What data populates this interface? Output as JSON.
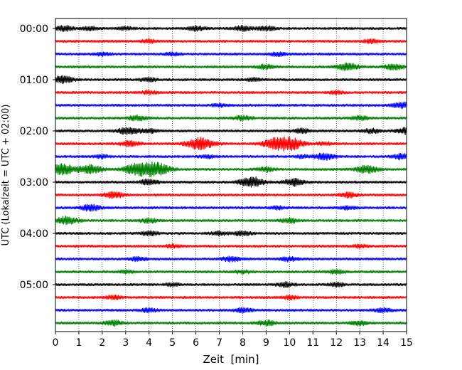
{
  "chart_data": {
    "type": "line",
    "subtype": "seismogram-helicorder",
    "xlabel": "Zeit  [min]",
    "ylabel": "UTC (Lokalzeit = UTC + 02:00)",
    "x_ticks": [
      "0",
      "1",
      "2",
      "3",
      "4",
      "5",
      "6",
      "7",
      "8",
      "9",
      "10",
      "11",
      "12",
      "13",
      "14",
      "15"
    ],
    "xlim": [
      0,
      15
    ],
    "y_ticks": [
      "00:00",
      "01:00",
      "02:00",
      "03:00",
      "04:00",
      "05:00"
    ],
    "traces_per_hour": 4,
    "trace_count": 24,
    "trace_color_cycle": [
      "#000000",
      "#ff0000",
      "#0000ff",
      "#008000"
    ],
    "grid": "vertical dotted at each minute",
    "traces": [
      {
        "start": "00:00",
        "bursts": [
          [
            0.4,
            0.35
          ],
          [
            1.5,
            0.25
          ],
          [
            3.0,
            0.2
          ],
          [
            6.0,
            0.3
          ],
          [
            8.0,
            0.35
          ],
          [
            9.0,
            0.3
          ]
        ]
      },
      {
        "start": "00:15",
        "bursts": [
          [
            4.0,
            0.2
          ],
          [
            13.5,
            0.25
          ]
        ]
      },
      {
        "start": "00:30",
        "bursts": [
          [
            2.0,
            0.2
          ],
          [
            5.0,
            0.2
          ],
          [
            9.5,
            0.25
          ]
        ]
      },
      {
        "start": "00:45",
        "bursts": [
          [
            9.0,
            0.3
          ],
          [
            12.5,
            0.55
          ],
          [
            14.5,
            0.4
          ]
        ]
      },
      {
        "start": "01:00",
        "bursts": [
          [
            0.3,
            0.5
          ],
          [
            4.0,
            0.25
          ],
          [
            8.5,
            0.2
          ]
        ]
      },
      {
        "start": "01:15",
        "bursts": [
          [
            4.0,
            0.2
          ],
          [
            12.0,
            0.2
          ]
        ]
      },
      {
        "start": "01:30",
        "bursts": [
          [
            7.0,
            0.2
          ],
          [
            14.8,
            0.4
          ]
        ]
      },
      {
        "start": "01:45",
        "bursts": [
          [
            3.5,
            0.35
          ],
          [
            8.0,
            0.3
          ],
          [
            13.0,
            0.3
          ]
        ]
      },
      {
        "start": "02:00",
        "bursts": [
          [
            3.1,
            0.5
          ],
          [
            4.0,
            0.3
          ],
          [
            10.5,
            0.3
          ],
          [
            13.5,
            0.3
          ],
          [
            15.0,
            0.45
          ]
        ]
      },
      {
        "start": "02:15",
        "bursts": [
          [
            3.2,
            0.4
          ],
          [
            6.2,
            0.85
          ],
          [
            9.5,
            0.9
          ],
          [
            10.2,
            0.6
          ],
          [
            11.5,
            0.2
          ]
        ]
      },
      {
        "start": "02:30",
        "bursts": [
          [
            2.0,
            0.2
          ],
          [
            6.5,
            0.2
          ],
          [
            10.5,
            0.2
          ],
          [
            11.5,
            0.45
          ],
          [
            14.8,
            0.35
          ]
        ]
      },
      {
        "start": "02:45",
        "bursts": [
          [
            0.3,
            0.75
          ],
          [
            1.5,
            0.6
          ],
          [
            3.5,
            0.8
          ],
          [
            4.3,
            0.9
          ],
          [
            9.0,
            0.3
          ],
          [
            13.3,
            0.55
          ]
        ]
      },
      {
        "start": "03:00",
        "bursts": [
          [
            4.0,
            0.35
          ],
          [
            8.4,
            0.75
          ],
          [
            10.2,
            0.5
          ]
        ]
      },
      {
        "start": "03:15",
        "bursts": [
          [
            2.5,
            0.45
          ],
          [
            12.5,
            0.35
          ]
        ]
      },
      {
        "start": "03:30",
        "bursts": [
          [
            1.5,
            0.45
          ],
          [
            9.5,
            0.2
          ],
          [
            12.5,
            0.2
          ]
        ]
      },
      {
        "start": "03:45",
        "bursts": [
          [
            0.5,
            0.55
          ],
          [
            4.0,
            0.3
          ],
          [
            10.0,
            0.3
          ]
        ]
      },
      {
        "start": "04:00",
        "bursts": [
          [
            4.0,
            0.3
          ],
          [
            7.0,
            0.25
          ],
          [
            8.0,
            0.3
          ]
        ]
      },
      {
        "start": "04:15",
        "bursts": [
          [
            5.0,
            0.2
          ],
          [
            13.0,
            0.2
          ]
        ]
      },
      {
        "start": "04:30",
        "bursts": [
          [
            3.5,
            0.25
          ],
          [
            7.5,
            0.35
          ],
          [
            10.0,
            0.3
          ]
        ]
      },
      {
        "start": "04:45",
        "bursts": [
          [
            3.0,
            0.2
          ],
          [
            8.0,
            0.2
          ],
          [
            12.0,
            0.25
          ]
        ]
      },
      {
        "start": "05:00",
        "bursts": [
          [
            5.0,
            0.2
          ],
          [
            9.8,
            0.3
          ],
          [
            12.0,
            0.25
          ]
        ]
      },
      {
        "start": "05:15",
        "bursts": [
          [
            2.5,
            0.25
          ],
          [
            10.0,
            0.25
          ]
        ]
      },
      {
        "start": "05:30",
        "bursts": [
          [
            4.0,
            0.25
          ],
          [
            8.0,
            0.3
          ],
          [
            14.0,
            0.3
          ]
        ]
      },
      {
        "start": "05:45",
        "bursts": [
          [
            2.5,
            0.35
          ],
          [
            9.0,
            0.35
          ],
          [
            13.0,
            0.3
          ]
        ]
      }
    ]
  }
}
